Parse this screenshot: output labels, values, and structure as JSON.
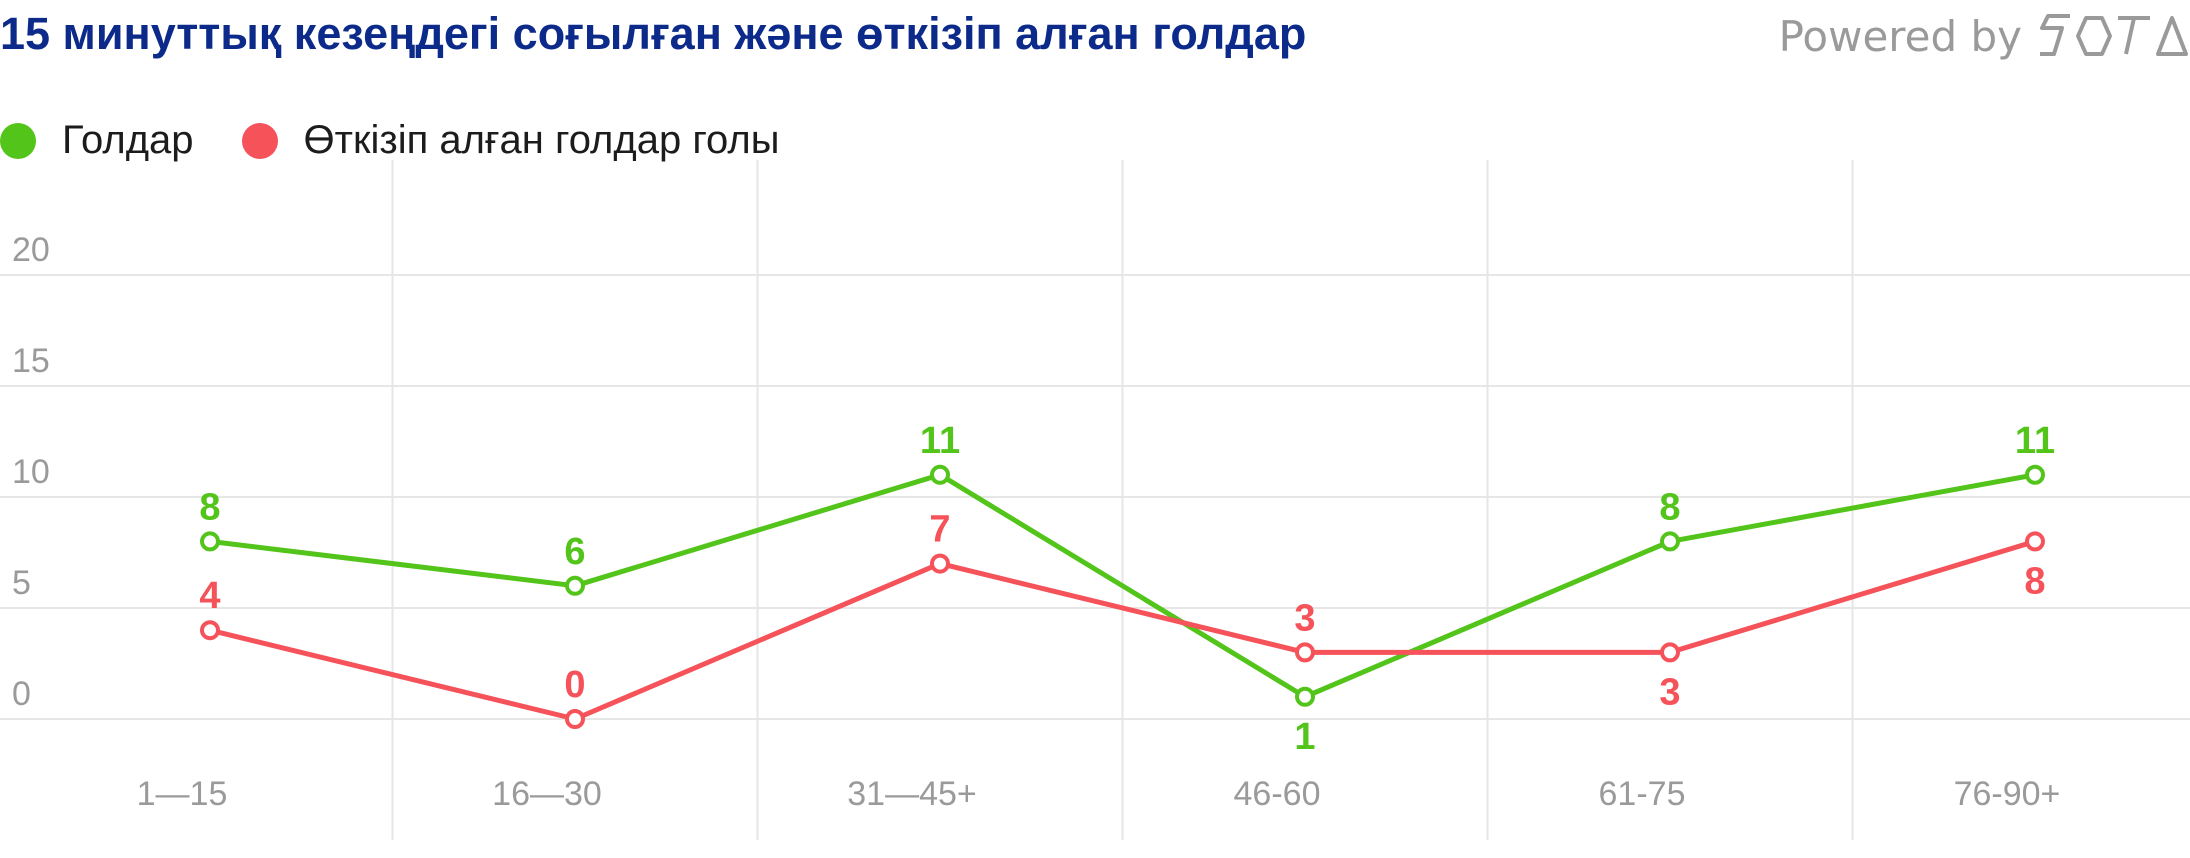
{
  "title": "15 минуттық кезеңдегі соғылған және өткізіп алған голдар",
  "powered": {
    "text": "Powered by",
    "brand": "SOTA"
  },
  "colors": {
    "title": "#0c2a8a",
    "scored": "#52c41a",
    "conceded": "#f5525a",
    "grid": "#e6e6e6",
    "axis_text": "#9a9a9a"
  },
  "chart_data": {
    "type": "line",
    "categories": [
      "1—15",
      "16—30",
      "31—45+",
      "46-60",
      "61-75",
      "76-90+"
    ],
    "series": [
      {
        "name": "Голдар",
        "color": "#52c41a",
        "values": [
          8,
          6,
          11,
          1,
          8,
          11
        ],
        "label_pos": [
          "above",
          "above",
          "above",
          "below",
          "above",
          "above"
        ]
      },
      {
        "name": "Өткізіп алған голдар голы",
        "color": "#f5525a",
        "values": [
          4,
          0,
          7,
          3,
          3,
          8
        ],
        "label_pos": [
          "above",
          "above",
          "above",
          "above",
          "below",
          "below"
        ]
      }
    ],
    "yticks": [
      0,
      5,
      10,
      15,
      20
    ],
    "ylim": [
      0,
      22
    ],
    "grid": true,
    "legend": "top-left"
  }
}
